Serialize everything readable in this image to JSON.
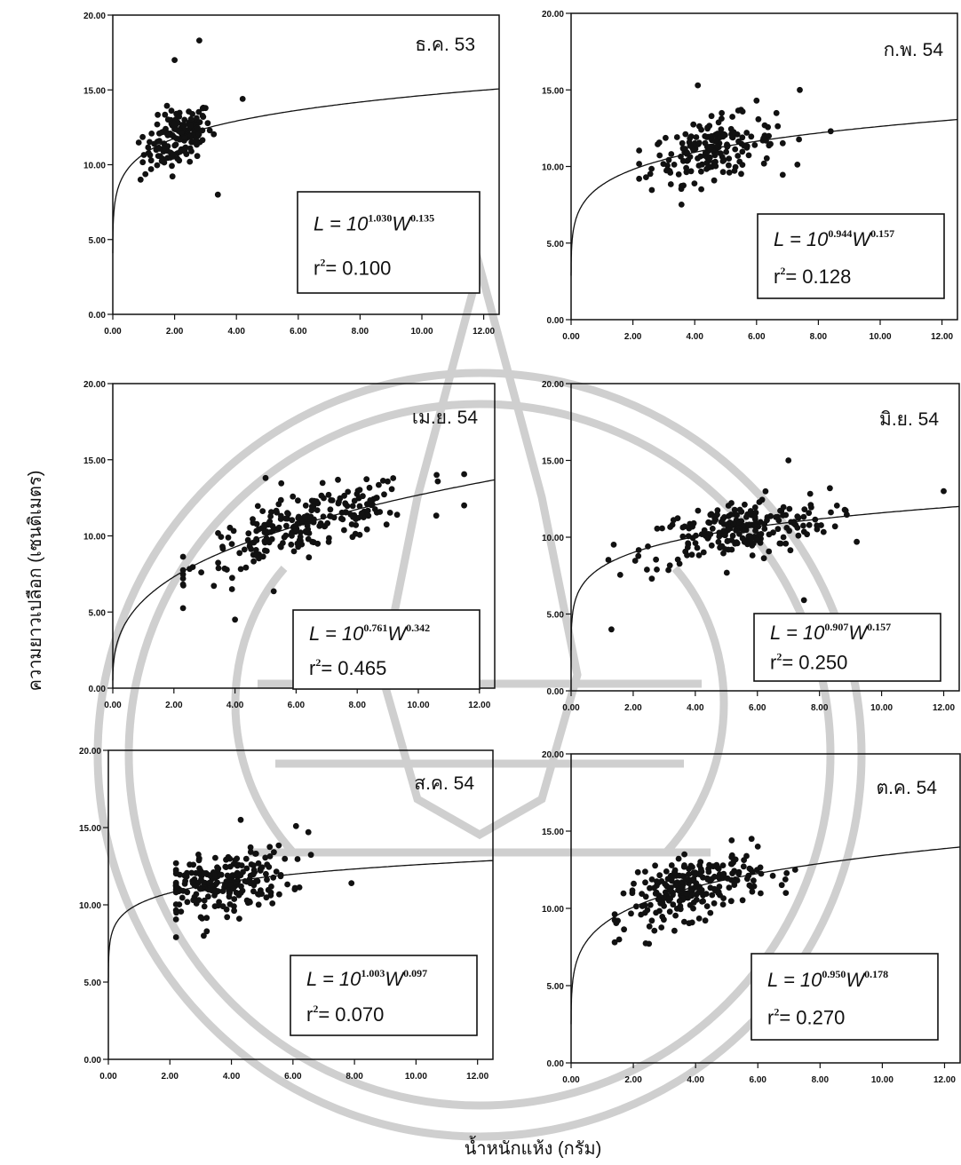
{
  "axes": {
    "ylabel": "ความยาวเปลือก (เซนติเมตร)",
    "xlabel": "น้ำหนักแห้ง (กรัม)"
  },
  "chart_data": [
    {
      "type": "scatter",
      "label": "ธ.ค. 53",
      "xlim": [
        0,
        12.5
      ],
      "ylim": [
        0,
        20
      ],
      "xticks": [
        "0.00",
        "2.00",
        "4.00",
        "6.00",
        "8.00",
        "10.00",
        "12.00"
      ],
      "yticks": [
        "0.00",
        "5.00",
        "10.00",
        "15.00",
        "20.00"
      ],
      "fit": {
        "a": "1.030",
        "b": "0.135",
        "r2": "0.100"
      },
      "points": {
        "x_mean": 2.1,
        "x_sd": 0.55,
        "x_min": 0.8,
        "x_max": 4.2,
        "n": 150,
        "outliers": [
          [
            2.0,
            17.0
          ],
          [
            2.8,
            18.3
          ],
          [
            3.4,
            8.0
          ],
          [
            4.2,
            14.4
          ],
          [
            0.9,
            9.0
          ]
        ]
      }
    },
    {
      "type": "scatter",
      "label": "ก.พ. 54",
      "xlim": [
        0,
        12.5
      ],
      "ylim": [
        0,
        20
      ],
      "xticks": [
        "0.00",
        "2.00",
        "4.00",
        "6.00",
        "8.00",
        "10.00",
        "12.00"
      ],
      "yticks": [
        "0.00",
        "5.00",
        "10.00",
        "15.00",
        "20.00"
      ],
      "fit": {
        "a": "0.944",
        "b": "0.157",
        "r2": "0.128"
      },
      "points": {
        "x_mean": 4.6,
        "x_sd": 1.0,
        "x_min": 2.2,
        "x_max": 8.4,
        "n": 180,
        "outliers": [
          [
            4.1,
            15.3
          ],
          [
            7.4,
            15.0
          ],
          [
            6.0,
            14.3
          ],
          [
            8.4,
            12.3
          ],
          [
            2.2,
            9.2
          ]
        ]
      }
    },
    {
      "type": "scatter",
      "label": "เม.ย. 54",
      "xlim": [
        0,
        12.5
      ],
      "ylim": [
        0,
        20
      ],
      "xticks": [
        "0.00",
        "2.00",
        "4.00",
        "6.00",
        "8.00",
        "10.00",
        "12.00"
      ],
      "yticks": [
        "0.00",
        "5.00",
        "10.00",
        "15.00",
        "20.00"
      ],
      "fit": {
        "a": "0.761",
        "b": "0.342",
        "r2": "0.465"
      },
      "points": {
        "x_mean": 6.3,
        "x_sd": 1.8,
        "x_min": 2.3,
        "x_max": 11.5,
        "n": 230,
        "outliers": [
          [
            4.0,
            4.5
          ],
          [
            2.3,
            7.2
          ],
          [
            5.0,
            13.8
          ],
          [
            10.6,
            14.0
          ],
          [
            11.5,
            12.0
          ],
          [
            3.9,
            6.5
          ]
        ]
      }
    },
    {
      "type": "scatter",
      "label": "มิ.ย. 54",
      "xlim": [
        0,
        12.5
      ],
      "ylim": [
        0,
        20
      ],
      "xticks": [
        "0.00",
        "2.00",
        "4.00",
        "6.00",
        "8.00",
        "10.00",
        "12.00"
      ],
      "yticks": [
        "0.00",
        "5.00",
        "10.00",
        "15.00",
        "20.00"
      ],
      "fit": {
        "a": "0.907",
        "b": "0.157",
        "r2": "0.250"
      },
      "points": {
        "x_mean": 5.3,
        "x_sd": 1.5,
        "x_min": 1.2,
        "x_max": 12.0,
        "n": 220,
        "outliers": [
          [
            1.3,
            4.0
          ],
          [
            7.0,
            15.0
          ],
          [
            12.0,
            13.0
          ],
          [
            9.2,
            9.7
          ],
          [
            7.5,
            5.9
          ],
          [
            2.6,
            7.3
          ]
        ]
      }
    },
    {
      "type": "scatter",
      "label": "ส.ค. 54",
      "xlim": [
        0,
        12.5
      ],
      "ylim": [
        0,
        20
      ],
      "xticks": [
        "0.00",
        "2.00",
        "4.00",
        "6.00",
        "8.00",
        "10.00",
        "12.00"
      ],
      "yticks": [
        "0.00",
        "5.00",
        "10.00",
        "15.00",
        "20.00"
      ],
      "fit": {
        "a": "1.003",
        "b": "0.097",
        "r2": "0.070"
      },
      "points": {
        "x_mean": 3.7,
        "x_sd": 1.1,
        "x_min": 2.2,
        "x_max": 7.9,
        "n": 230,
        "outliers": [
          [
            3.1,
            8.0
          ],
          [
            4.3,
            15.5
          ],
          [
            6.1,
            15.1
          ],
          [
            6.5,
            14.7
          ],
          [
            7.9,
            11.4
          ],
          [
            2.2,
            7.9
          ]
        ]
      }
    },
    {
      "type": "scatter",
      "label": "ต.ค. 54",
      "xlim": [
        0,
        12.5
      ],
      "ylim": [
        0,
        20
      ],
      "xticks": [
        "0.00",
        "2.00",
        "4.00",
        "6.00",
        "8.00",
        "10.00",
        "12.00"
      ],
      "yticks": [
        "0.00",
        "5.00",
        "10.00",
        "15.00",
        "20.00"
      ],
      "fit": {
        "a": "0.950",
        "b": "0.178",
        "r2": "0.270"
      },
      "points": {
        "x_mean": 3.9,
        "x_sd": 1.1,
        "x_min": 1.4,
        "x_max": 7.2,
        "n": 240,
        "outliers": [
          [
            5.8,
            14.5
          ],
          [
            6.0,
            14.0
          ],
          [
            7.2,
            12.5
          ],
          [
            6.9,
            11.0
          ],
          [
            1.5,
            9.2
          ]
        ]
      }
    }
  ]
}
